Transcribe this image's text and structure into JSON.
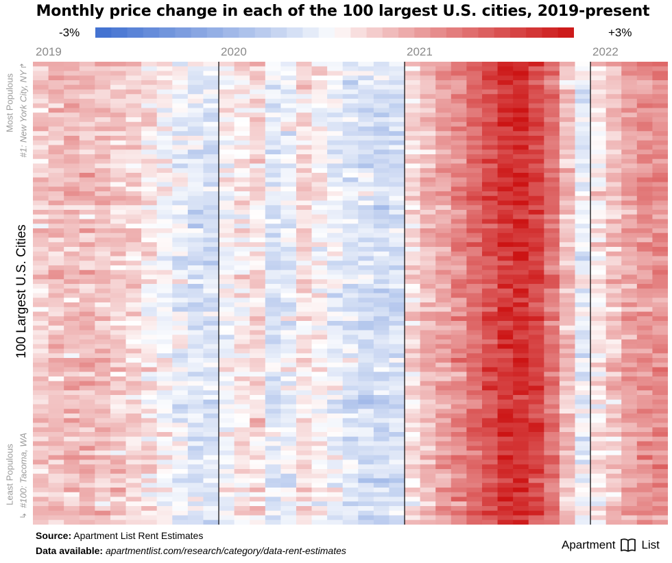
{
  "title": "Monthly price change in each of the 100 largest U.S. cities, 2019-present",
  "legend": {
    "min_label": "-3%",
    "max_label": "+3%",
    "min_color": "#3f6fd0",
    "mid_color": "#ffffff",
    "max_color": "#cc1414"
  },
  "side_labels": {
    "main": "100 Largest U.S. Cities",
    "top_heading": "Most Populous",
    "top_example": "#1: New York City, NY",
    "bottom_heading": "Least Populous",
    "bottom_example": "#100: Tacoma, WA"
  },
  "footer": {
    "source_label": "Source:",
    "source_text": "Apartment List Rent Estimates",
    "data_label": "Data available:",
    "data_text": "apartmentlist.com/research/category/data-rent-estimates"
  },
  "brand": {
    "left": "Apartment",
    "right": "List"
  },
  "chart_data": {
    "type": "heatmap",
    "title": "Monthly price change in each of the 100 largest U.S. cities, 2019-present",
    "x_groups": [
      "2019",
      "2020",
      "2021",
      "2022"
    ],
    "months_per_group": [
      12,
      12,
      12,
      5
    ],
    "n_rows": 100,
    "color_scale": {
      "min": -3,
      "max": 3,
      "unit": "%"
    },
    "row_order": "By population, #1 New York City, NY (top) to #100 Tacoma, WA (bottom)",
    "monthly_pattern_pct": {
      "2019": [
        0.5,
        0.6,
        0.7,
        0.7,
        0.6,
        0.5,
        0.4,
        0.2,
        0.0,
        -0.2,
        -0.4,
        -0.4
      ],
      "2020": [
        -0.1,
        0.2,
        0.3,
        -0.4,
        -0.2,
        0.3,
        0.1,
        -0.2,
        -0.4,
        -0.5,
        -0.6,
        -0.5
      ],
      "2021": [
        0.3,
        0.7,
        1.0,
        1.3,
        1.7,
        2.1,
        2.5,
        2.6,
        2.3,
        1.6,
        0.6,
        -0.2
      ],
      "2022": [
        0.2,
        0.6,
        1.0,
        1.2,
        1.3
      ]
    }
  }
}
